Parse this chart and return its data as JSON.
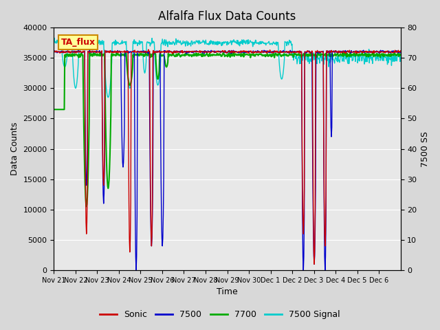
{
  "title": "Alfalfa Flux Data Counts",
  "xlabel": "Time",
  "ylabel_left": "Data Counts",
  "ylabel_right": "7500 SS",
  "ylim_left": [
    0,
    40000
  ],
  "ylim_right": [
    0,
    80
  ],
  "bg_color": "#d8d8d8",
  "plot_bg_color": "#e8e8e8",
  "annotation_text": "TA_flux",
  "annotation_color": "#cc0000",
  "annotation_bg": "#ffff99",
  "sonic_color": "#cc0000",
  "c7500_color": "#0000cc",
  "c7700_color": "#00aa00",
  "signal_color": "#00cccc",
  "x_tick_labels": [
    "Nov 21",
    "Nov 22",
    "Nov 23",
    "Nov 24",
    "Nov 25",
    "Nov 26",
    "Nov 27",
    "Nov 28",
    "Nov 29",
    "Nov 30",
    "Dec 1",
    "Dec 2",
    "Dec 3",
    "Dec 4",
    "Dec 5",
    "Dec 6"
  ],
  "n_days": 16,
  "start_day": 0
}
